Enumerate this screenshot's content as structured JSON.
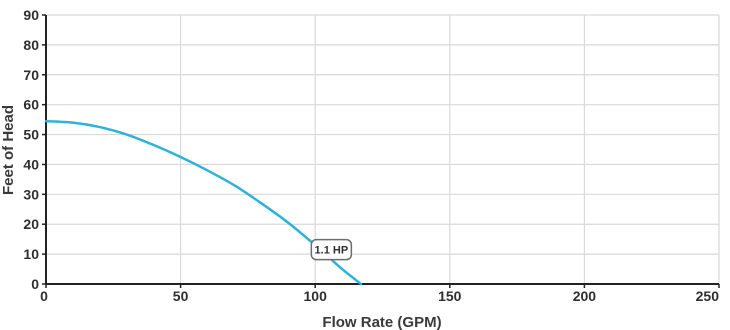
{
  "chart_data": {
    "type": "line",
    "xlabel": "Flow Rate (GPM)",
    "ylabel": "Feet of Head",
    "xlim": [
      0,
      250
    ],
    "ylim": [
      0,
      90
    ],
    "x_ticks": [
      "0",
      "50",
      "100",
      "150",
      "200",
      "250"
    ],
    "y_ticks": [
      "0",
      "10",
      "20",
      "30",
      "40",
      "50",
      "60",
      "70",
      "80",
      "90"
    ],
    "grid": true,
    "series": [
      {
        "name": "1.1 HP",
        "color": "#2eb2d9",
        "points": [
          [
            0,
            54.5
          ],
          [
            10,
            54
          ],
          [
            20,
            52.5
          ],
          [
            30,
            50
          ],
          [
            40,
            46.5
          ],
          [
            50,
            42.5
          ],
          [
            60,
            38
          ],
          [
            70,
            33
          ],
          [
            80,
            27
          ],
          [
            90,
            20.5
          ],
          [
            100,
            13
          ],
          [
            105,
            9
          ],
          [
            110,
            5
          ],
          [
            117,
            0
          ]
        ]
      }
    ],
    "annotations": [
      {
        "text": "1.1 HP",
        "x": 106,
        "y": 11.5
      }
    ]
  }
}
